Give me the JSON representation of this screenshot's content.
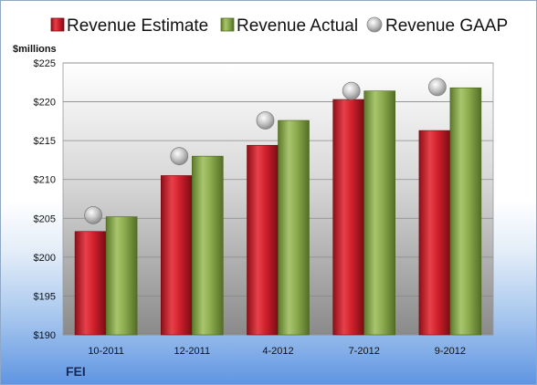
{
  "chart_data": {
    "type": "bar",
    "unit_label": "$millions",
    "categories": [
      "10-2011",
      "12-2011",
      "4-2012",
      "7-2012",
      "9-2012"
    ],
    "y_ticks": [
      "$190",
      "$195",
      "$200",
      "$205",
      "$210",
      "$215",
      "$220",
      "$225"
    ],
    "ylim": [
      190,
      225
    ],
    "grid": true,
    "legend_position": "top",
    "series": [
      {
        "name": "Revenue Estimate",
        "type": "bar",
        "color": "#d0202c",
        "values": [
          203.3,
          210.5,
          214.4,
          220.3,
          216.3
        ]
      },
      {
        "name": "Revenue Actual",
        "type": "bar",
        "color": "#8cab4e",
        "values": [
          205.2,
          213.0,
          217.6,
          221.4,
          221.8
        ]
      },
      {
        "name": "Revenue GAAP",
        "type": "scatter",
        "color": "#b8b8b8",
        "values": [
          205.4,
          213.0,
          217.6,
          221.4,
          221.9
        ]
      }
    ]
  },
  "company": "FEI"
}
